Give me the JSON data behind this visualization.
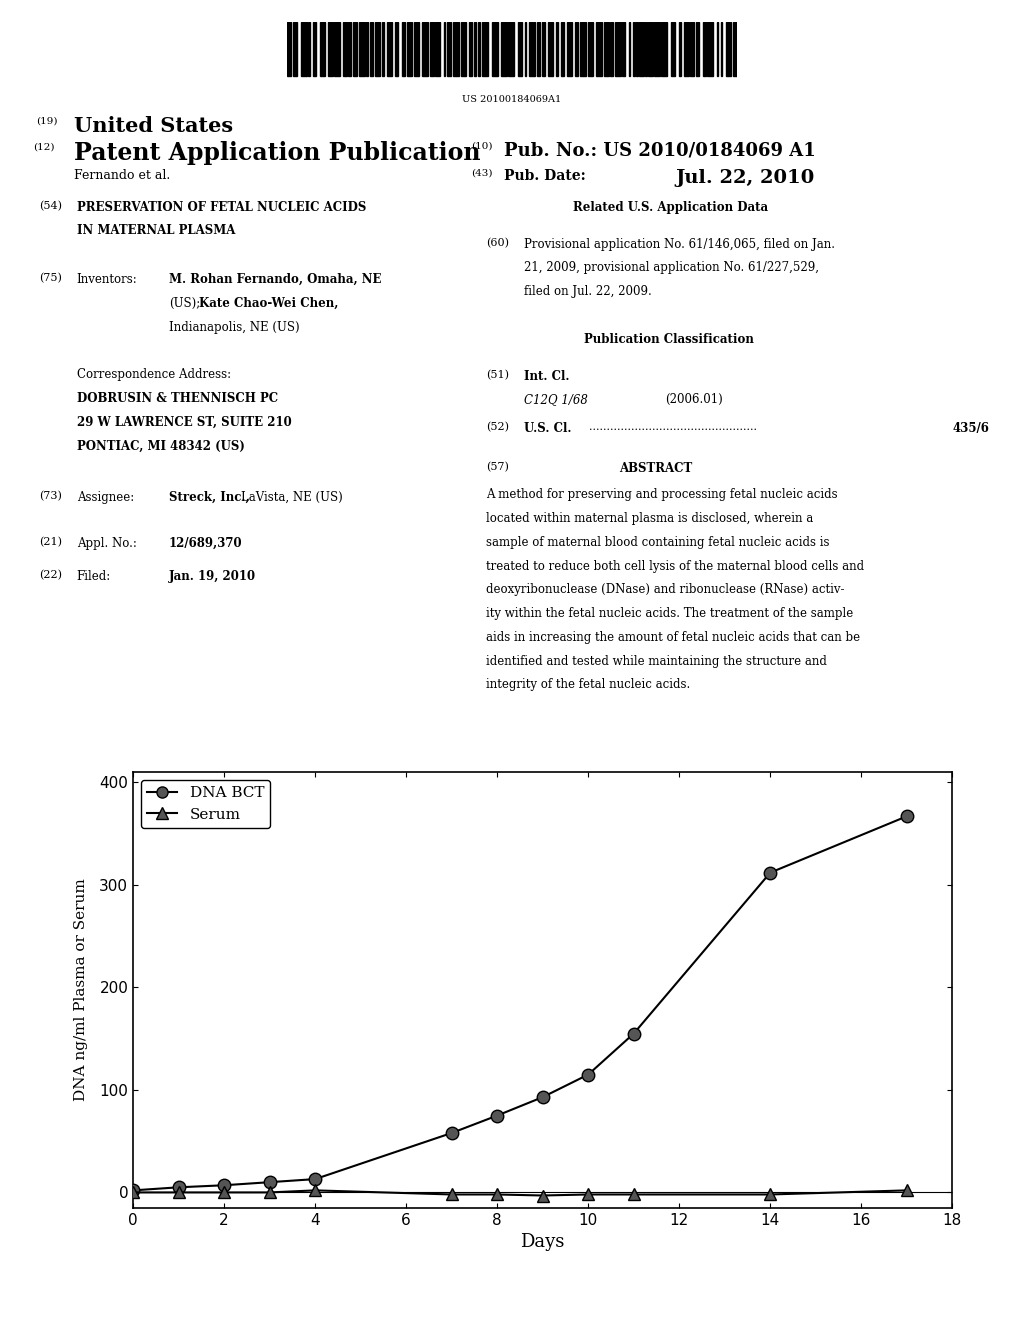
{
  "barcode_text": "US 20100184069A1",
  "label_19": "(19)",
  "label_12": "(12)",
  "label_10": "(10)",
  "label_43": "(43)",
  "title_19": "United States",
  "title_12": "Patent Application Publication",
  "authors": "Fernando et al.",
  "pub_no_label": "Pub. No.:",
  "pub_no": "US 2010/0184069 A1",
  "pub_date_label": "Pub. Date:",
  "pub_date": "Jul. 22, 2010",
  "field_54_label": "(54)",
  "field_54_title": "PRESERVATION OF FETAL NUCLEIC ACIDS\nIN MATERNAL PLASMA",
  "field_75_label": "(75)",
  "field_75_key": "Inventors:",
  "field_75_val": "M. Rohan Fernando, Omaha, NE\n(US); Kate Chao-Wei Chen,\nIndianapolis, NE (US)",
  "corr_label": "Correspondence Address:",
  "corr_name": "DOBRUSIN & THENNISCH PC",
  "corr_addr1": "29 W LAWRENCE ST, SUITE 210",
  "corr_addr2": "PONTIAC, MI 48342 (US)",
  "field_73_label": "(73)",
  "field_73_key": "Assignee:",
  "field_73_val": "Streck, Inc., LaVista, NE (US)",
  "field_21_label": "(21)",
  "field_21_key": "Appl. No.:",
  "field_21_val": "12/689,370",
  "field_22_label": "(22)",
  "field_22_key": "Filed:",
  "field_22_val": "Jan. 19, 2010",
  "related_title": "Related U.S. Application Data",
  "field_60_label": "(60)",
  "field_60_val": "Provisional application No. 61/146,065, filed on Jan.\n21, 2009, provisional application No. 61/227,529,\nfiled on Jul. 22, 2009.",
  "pub_class_title": "Publication Classification",
  "field_51_label": "(51)",
  "field_51_key": "Int. Cl.",
  "field_51_val": "C12Q 1/68",
  "field_51_year": "(2006.01)",
  "field_52_label": "(52)",
  "field_52_key": "U.S. Cl.",
  "field_52_val": "435/6",
  "field_57_label": "(57)",
  "field_57_key": "ABSTRACT",
  "abstract_text": "A method for preserving and processing fetal nucleic acids located within maternal plasma is disclosed, wherein a sample of maternal blood containing fetal nucleic acids is treated to reduce both cell lysis of the maternal blood cells and deoxyribonuclease (DNase) and ribonuclease (RNase) activ-ity within the fetal nucleic acids. The treatment of the sample aids in increasing the amount of fetal nucleic acids that can be identified and tested while maintaining the structure and integrity of the fetal nucleic acids.",
  "dna_bct_days": [
    0,
    1,
    2,
    3,
    4,
    7,
    8,
    9,
    10,
    11,
    14,
    17
  ],
  "dna_bct_values": [
    2,
    5,
    7,
    10,
    13,
    58,
    75,
    93,
    115,
    155,
    312,
    367
  ],
  "serum_days": [
    0,
    1,
    2,
    3,
    4,
    7,
    8,
    9,
    10,
    11,
    14,
    17
  ],
  "serum_values": [
    0,
    0,
    0,
    0,
    2,
    -2,
    -2,
    -3,
    -2,
    -2,
    -2,
    2
  ],
  "xlabel": "Days",
  "ylabel": "DNA ng/ml Plasma or Serum",
  "legend_dna": "DNA BCT",
  "legend_serum": "Serum",
  "xlim": [
    0,
    18
  ],
  "ylim": [
    -10,
    400
  ],
  "yticks": [
    0,
    100,
    200,
    300,
    400
  ],
  "xticks": [
    0,
    2,
    4,
    6,
    8,
    10,
    12,
    14,
    16,
    18
  ],
  "bg_color": "#ffffff",
  "line_color": "#000000"
}
